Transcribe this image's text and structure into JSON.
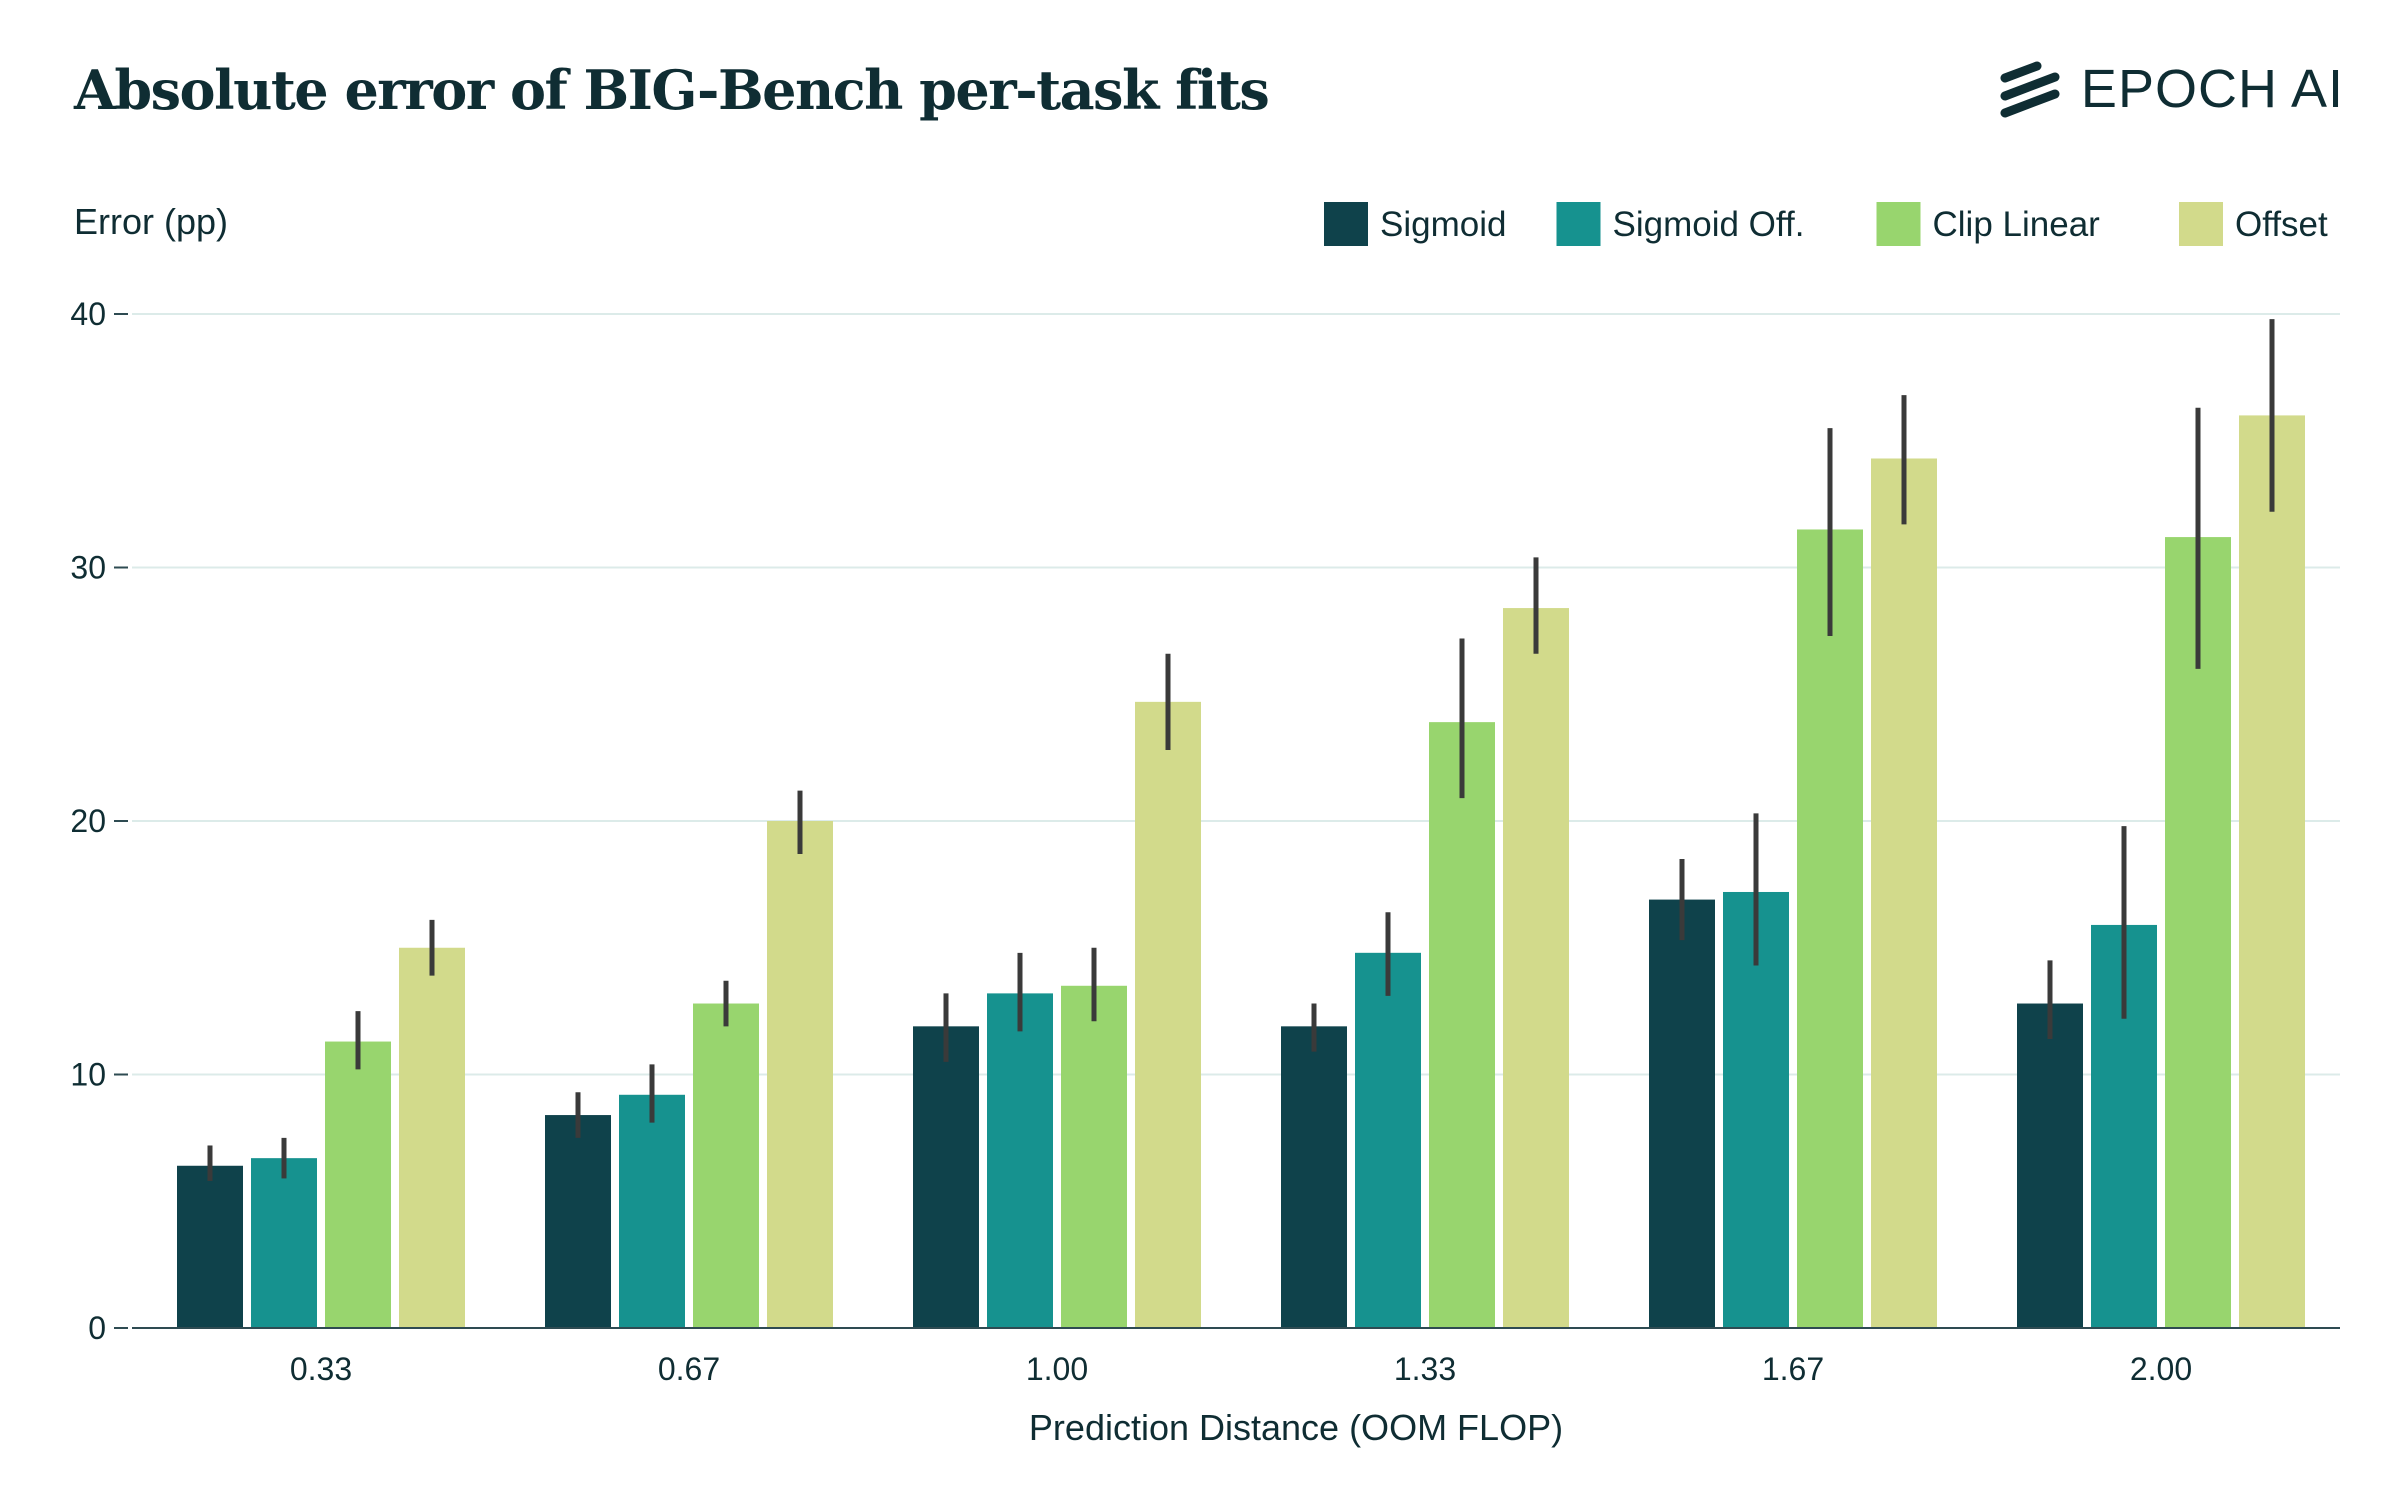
{
  "header": {
    "title": "Absolute error of BIG-Bench per-task fits",
    "logo_text": "EPOCH AI"
  },
  "colors": {
    "Sigmoid": "#0f424b",
    "Sigmoid Off.": "#16928f",
    "Clip Linear": "#98d56e",
    "Offset": "#d2da8b",
    "text": "#0f2d33",
    "grid": "#dcebe9",
    "axis": "#2e4b52",
    "errorbar": "#3a3a3a"
  },
  "chart_data": {
    "type": "bar",
    "title": "Absolute error of BIG-Bench per-task fits",
    "xlabel": "Prediction Distance (OOM FLOP)",
    "ylabel": "Error (pp)",
    "ylim": [
      0,
      40
    ],
    "yticks": [
      0,
      10,
      20,
      30,
      40
    ],
    "grid": true,
    "legend_position": "top-right",
    "categories": [
      "0.33",
      "0.67",
      "1.00",
      "1.33",
      "1.67",
      "2.00"
    ],
    "series": [
      {
        "name": "Sigmoid",
        "values": [
          6.4,
          8.4,
          11.9,
          11.9,
          16.9,
          12.8
        ],
        "err_low": [
          5.8,
          7.5,
          10.5,
          10.9,
          15.3,
          11.4
        ],
        "err_high": [
          7.2,
          9.3,
          13.2,
          12.8,
          18.5,
          14.5
        ]
      },
      {
        "name": "Sigmoid Off.",
        "values": [
          6.7,
          9.2,
          13.2,
          14.8,
          17.2,
          15.9
        ],
        "err_low": [
          5.9,
          8.1,
          11.7,
          13.1,
          14.3,
          12.2
        ],
        "err_high": [
          7.5,
          10.4,
          14.8,
          16.4,
          20.3,
          19.8
        ]
      },
      {
        "name": "Clip Linear",
        "values": [
          11.3,
          12.8,
          13.5,
          23.9,
          31.5,
          31.2
        ],
        "err_low": [
          10.2,
          11.9,
          12.1,
          20.9,
          27.3,
          26.0
        ],
        "err_high": [
          12.5,
          13.7,
          15.0,
          27.2,
          35.5,
          36.3
        ]
      },
      {
        "name": "Offset",
        "values": [
          15.0,
          20.0,
          24.7,
          28.4,
          34.3,
          36.0
        ],
        "err_low": [
          13.9,
          18.7,
          22.8,
          26.6,
          31.7,
          32.2
        ],
        "err_high": [
          16.1,
          21.2,
          26.6,
          30.4,
          36.8,
          39.8
        ]
      }
    ]
  }
}
